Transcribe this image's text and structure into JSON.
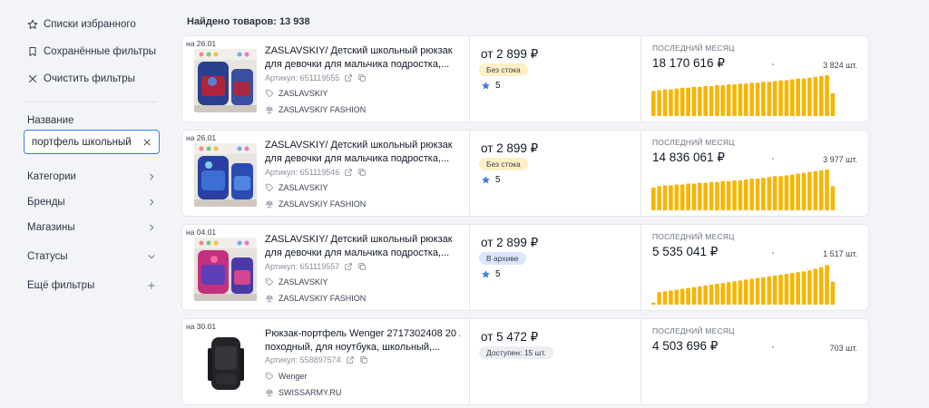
{
  "sidebar": {
    "favorites": "Списки избранного",
    "saved_filters": "Сохранённые фильтры",
    "clear_filters": "Очистить фильтры",
    "name_label": "Название",
    "search_value": "портфель школьный",
    "filters": [
      {
        "label": "Категории",
        "icon": "chevron-right-icon"
      },
      {
        "label": "Бренды",
        "icon": "chevron-right-icon"
      },
      {
        "label": "Магазины",
        "icon": "chevron-right-icon"
      },
      {
        "label": "Статусы",
        "icon": "chevron-down-icon"
      },
      {
        "label": "Ещё фильтры",
        "icon": "plus-icon"
      }
    ]
  },
  "main": {
    "found_label": "Найдено товаров: 13 938"
  },
  "products": [
    {
      "date": "на 26.01",
      "title_line1": "ZASLAVSKIY/ Детский школьный рюкзак",
      "title_line2": "для девочки для мальчика подростка,...",
      "article": "Артикул: 651119555",
      "brand": "ZASLAVSKIY",
      "shop": "ZASLAVSKIY FASHION",
      "price": "от 2 899 ₽",
      "badge": "Без стока",
      "badge_color": "#fdf0c4",
      "rating": "5",
      "sales_label": "ПОСЛЕДНИЙ МЕСЯЦ",
      "sales_value": "18 170 616 ₽",
      "sales_count": "3 824 шт.",
      "bars": [
        0.6,
        0.62,
        0.64,
        0.64,
        0.66,
        0.68,
        0.68,
        0.7,
        0.7,
        0.72,
        0.72,
        0.74,
        0.74,
        0.76,
        0.76,
        0.78,
        0.78,
        0.8,
        0.8,
        0.82,
        0.82,
        0.84,
        0.86,
        0.86,
        0.88,
        0.9,
        0.9,
        0.92,
        0.94,
        0.96,
        0.98,
        0.55
      ]
    },
    {
      "date": "на 26.01",
      "title_line1": "ZASLAVSKIY/ Детский школьный рюкзак",
      "title_line2": "для девочки для мальчика подростка,...",
      "article": "Артикул: 651119546",
      "brand": "ZASLAVSKIY",
      "shop": "ZASLAVSKIY FASHION",
      "price": "от 2 899 ₽",
      "badge": "Без стока",
      "badge_color": "#fdf0c4",
      "rating": "5",
      "sales_label": "ПОСЛЕДНИЙ МЕСЯЦ",
      "sales_value": "14 836 061 ₽",
      "sales_count": "3 977 шт.",
      "bars": [
        0.55,
        0.58,
        0.6,
        0.6,
        0.62,
        0.62,
        0.64,
        0.64,
        0.66,
        0.66,
        0.68,
        0.68,
        0.7,
        0.7,
        0.72,
        0.72,
        0.74,
        0.76,
        0.76,
        0.78,
        0.8,
        0.82,
        0.82,
        0.84,
        0.86,
        0.88,
        0.9,
        0.92,
        0.94,
        0.96,
        0.98,
        0.58
      ]
    },
    {
      "date": "на 04.01",
      "title_line1": "ZASLAVSKIY/ Детский школьный рюкзак",
      "title_line2": "для девочки для мальчика подростка,...",
      "article": "Артикул: 651119557",
      "brand": "ZASLAVSKIY",
      "shop": "ZASLAVSKIY FASHION",
      "price": "от 2 899 ₽",
      "badge": "В архиве",
      "badge_color": "#dbe6fb",
      "rating": "5",
      "sales_label": "ПОСЛЕДНИЙ МЕСЯЦ",
      "sales_value": "5 535 041 ₽",
      "sales_count": "1 517 шт.",
      "bars": [
        0.05,
        0.3,
        0.32,
        0.34,
        0.36,
        0.38,
        0.4,
        0.42,
        0.44,
        0.46,
        0.48,
        0.5,
        0.52,
        0.54,
        0.56,
        0.58,
        0.6,
        0.62,
        0.64,
        0.66,
        0.68,
        0.7,
        0.72,
        0.74,
        0.76,
        0.78,
        0.8,
        0.82,
        0.86,
        0.9,
        0.95,
        0.55
      ]
    },
    {
      "date": "на 30.01",
      "title_line1": "Рюкзак-портфель Wenger 2717302408 20 л",
      "title_line2": "походный, для ноутбука, школьный,...",
      "article": "Артикул: 558897574",
      "brand": "Wenger",
      "shop": "SWISSARMY.RU",
      "price": "от 5 472 ₽",
      "badge": "Доступен: 15 шт.",
      "badge_color": "#eceef2",
      "rating": "",
      "sales_label": "ПОСЛЕДНИЙ МЕСЯЦ",
      "sales_value": "4 503 696 ₽",
      "sales_count": "703 шт.",
      "bars": []
    }
  ],
  "colors": {
    "accent": "#3b7bf0",
    "bar": "#f7b500",
    "star": "#4a7fe0"
  }
}
